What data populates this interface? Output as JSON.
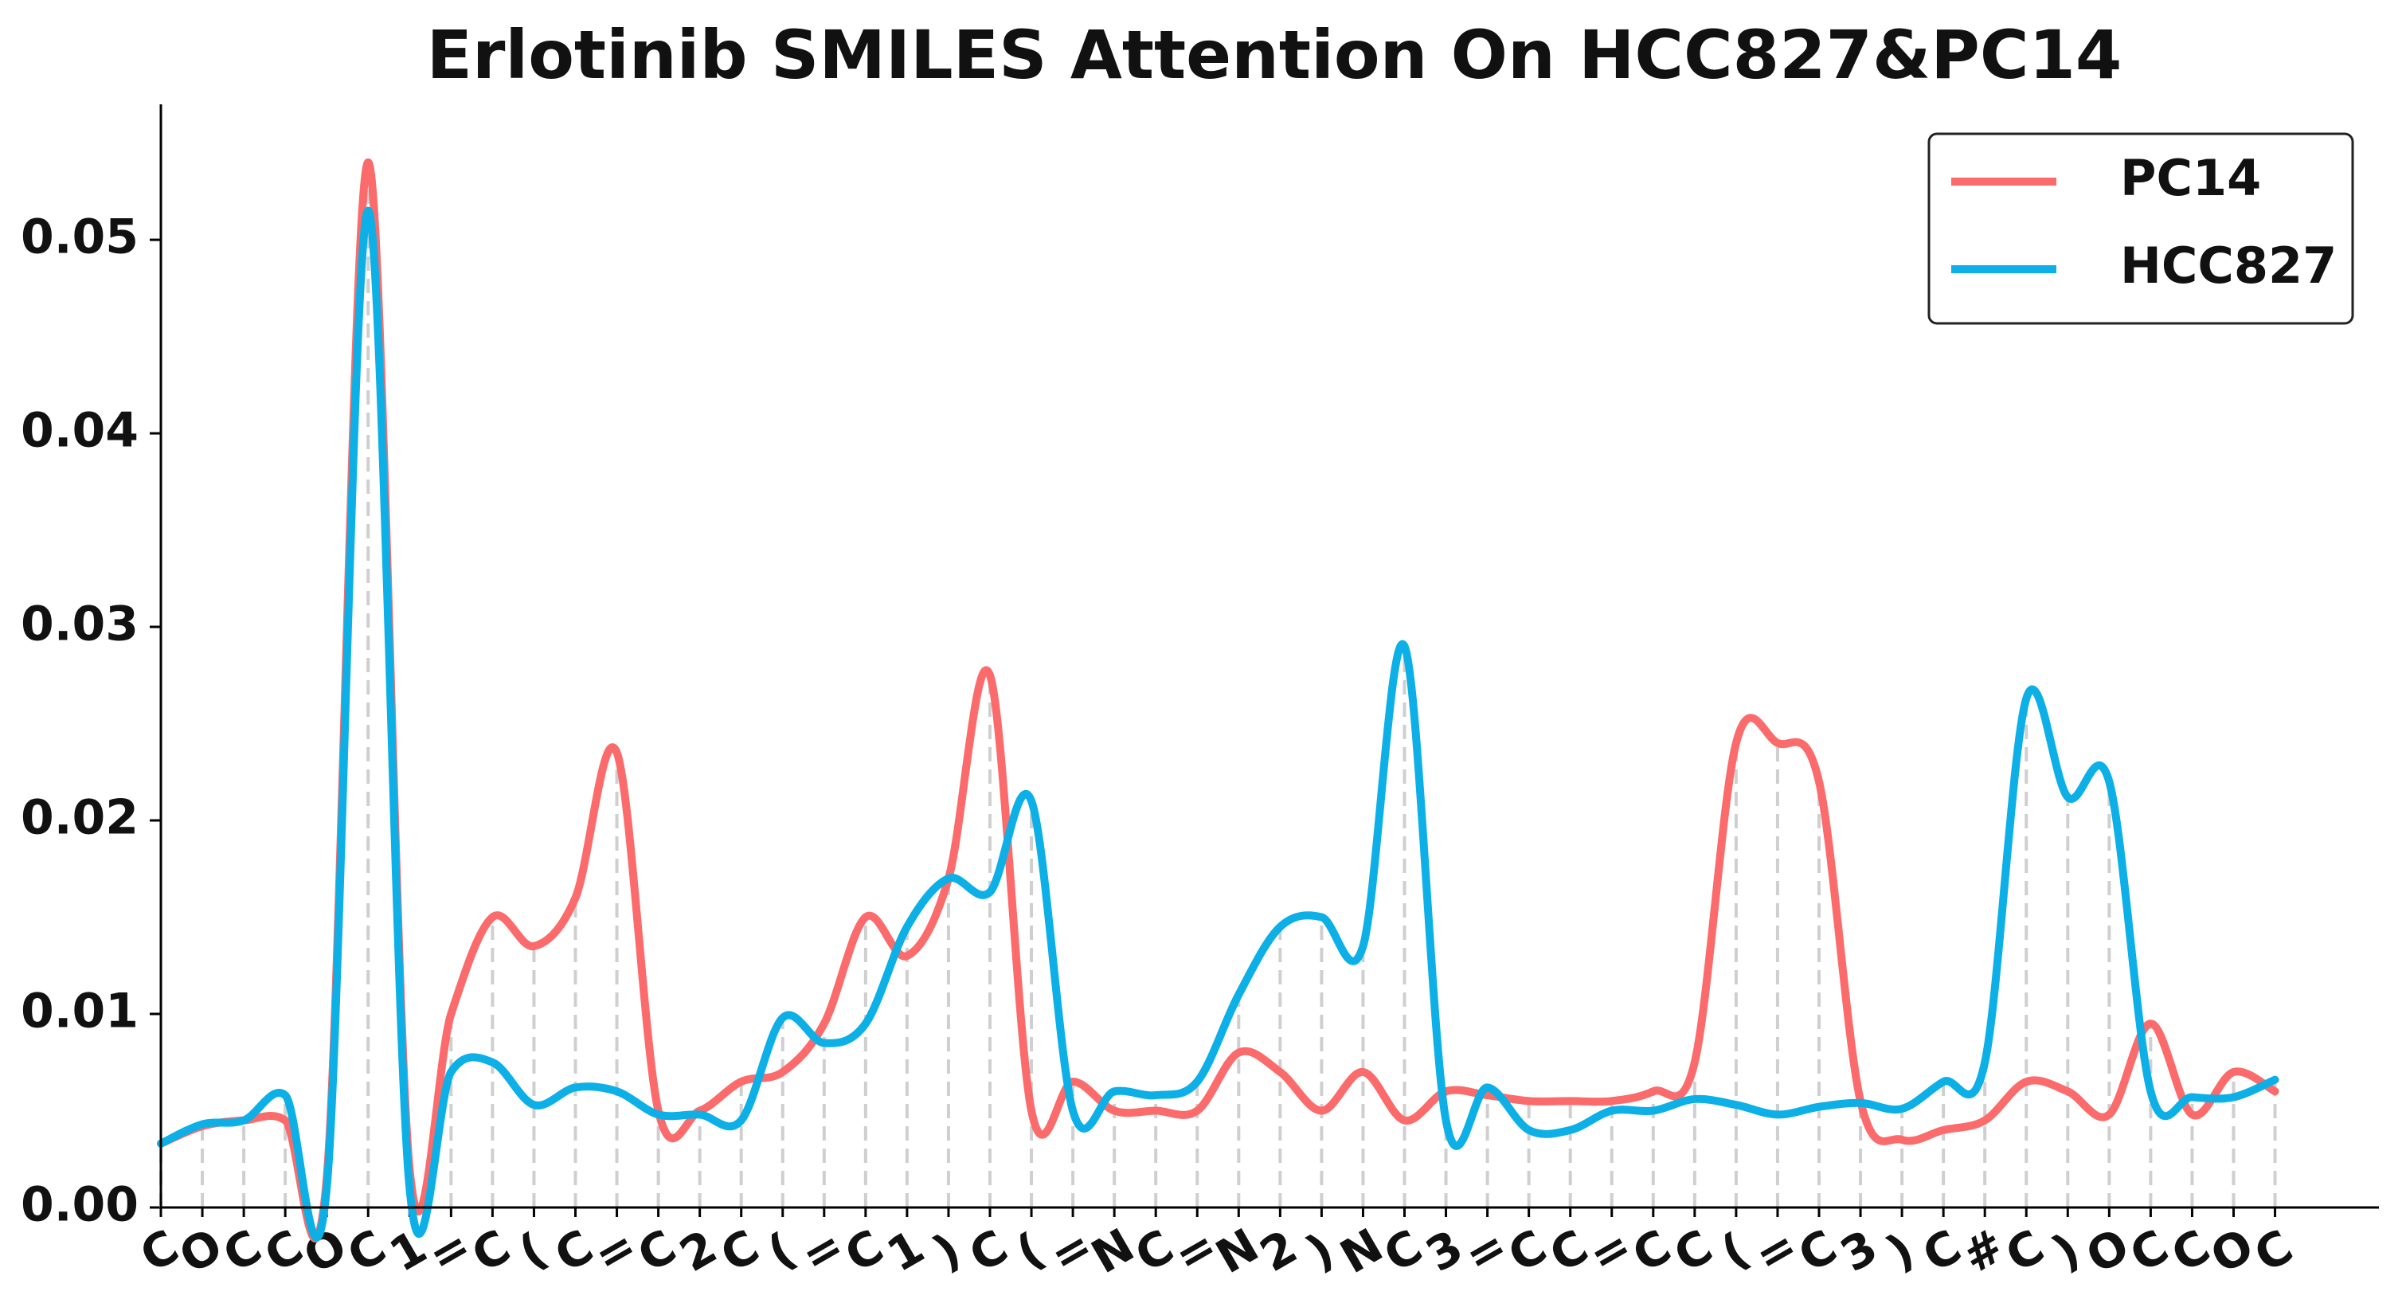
{
  "chart_data": {
    "type": "line",
    "title": "Erlotinib SMILES Attention On HCC827&PC14",
    "categories": [
      "C",
      "O",
      "C",
      "C",
      "O",
      "C",
      "1",
      "=",
      "C",
      "(",
      "C",
      "=",
      "C",
      "2",
      "C",
      "(",
      "=",
      "C",
      "1",
      ")",
      "C",
      "(",
      "=",
      "N",
      "C",
      "=",
      "N",
      "2",
      ")",
      "N",
      "C",
      "3",
      "=",
      "C",
      "C",
      "=",
      "C",
      "C",
      "(",
      "=",
      "C",
      "3",
      ")",
      "C",
      "#",
      "C",
      ")",
      "O",
      "C",
      "C",
      "O",
      "C"
    ],
    "series": [
      {
        "name": "PC14",
        "color": "#fb6b6b",
        "values": [
          0.0033,
          0.0042,
          0.0045,
          0.0045,
          0.0015,
          0.054,
          0.002,
          0.01,
          0.015,
          0.0135,
          0.016,
          0.0235,
          0.005,
          0.005,
          0.0065,
          0.007,
          0.0095,
          0.015,
          0.013,
          0.017,
          0.0275,
          0.005,
          0.0065,
          0.005,
          0.005,
          0.005,
          0.008,
          0.007,
          0.005,
          0.007,
          0.0045,
          0.006,
          0.0058,
          0.0055,
          0.0055,
          0.0055,
          0.006,
          0.0075,
          0.024,
          0.024,
          0.022,
          0.0055,
          0.0035,
          0.004,
          0.0045,
          0.0065,
          0.006,
          0.0048,
          0.0095,
          0.0048,
          0.007,
          0.006
        ]
      },
      {
        "name": "HCC827",
        "color": "#0cb0e6",
        "values": [
          0.0033,
          0.0043,
          0.0045,
          0.0058,
          0.001,
          0.0515,
          0.001,
          0.007,
          0.0075,
          0.0053,
          0.0062,
          0.006,
          0.0048,
          0.0048,
          0.0045,
          0.0098,
          0.0085,
          0.0095,
          0.0145,
          0.017,
          0.0163,
          0.021,
          0.005,
          0.006,
          0.0058,
          0.0065,
          0.011,
          0.0145,
          0.015,
          0.0135,
          0.029,
          0.0045,
          0.0062,
          0.004,
          0.004,
          0.005,
          0.005,
          0.0056,
          0.0053,
          0.0048,
          0.0052,
          0.0054,
          0.0051,
          0.0065,
          0.0075,
          0.0263,
          0.0212,
          0.022,
          0.006,
          0.0057,
          0.0057,
          0.0066
        ]
      }
    ],
    "ylim": [
      0,
      0.057
    ],
    "yticks": [
      {
        "value": 0,
        "label": "0.00"
      },
      0.01,
      0.02,
      0.03,
      0.04,
      0.05
    ],
    "legend": "upper right",
    "drop_lines": true
  }
}
